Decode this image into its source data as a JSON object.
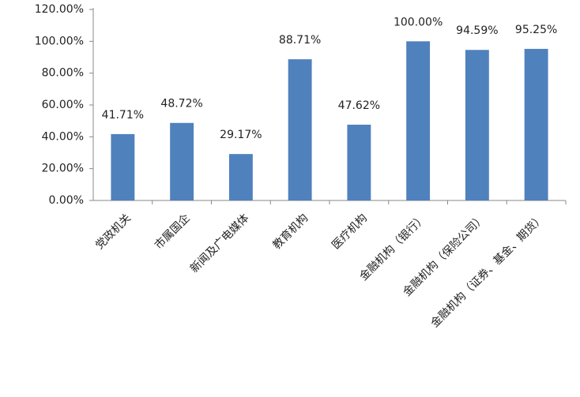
{
  "chart_data": {
    "type": "bar",
    "categories": [
      "党政机关",
      "市属国企",
      "新闻及广电媒体",
      "教育机构",
      "医疗机构",
      "金融机构（银行）",
      "金融机构（保险公司）",
      "金融机构（证券、基金、期货）"
    ],
    "values": [
      41.71,
      48.72,
      29.17,
      88.71,
      47.62,
      100,
      94.59,
      95.25
    ],
    "value_labels": [
      "41.71%",
      "48.72%",
      "29.17%",
      "88.71%",
      "47.62%",
      "100.00%",
      "94.59%",
      "95.25%"
    ],
    "color": "#4f81bd",
    "ylim": [
      0,
      120
    ],
    "yticks": [
      {
        "value": 0,
        "label": "0.00%"
      },
      {
        "value": 20,
        "label": "20.00%"
      },
      {
        "value": 40,
        "label": "40.00%"
      },
      {
        "value": 60,
        "label": "60.00%"
      },
      {
        "value": 80,
        "label": "80.00%"
      },
      {
        "value": 100,
        "label": "100.00%"
      },
      {
        "value": 120,
        "label": "120.00%"
      }
    ],
    "grid": false
  }
}
